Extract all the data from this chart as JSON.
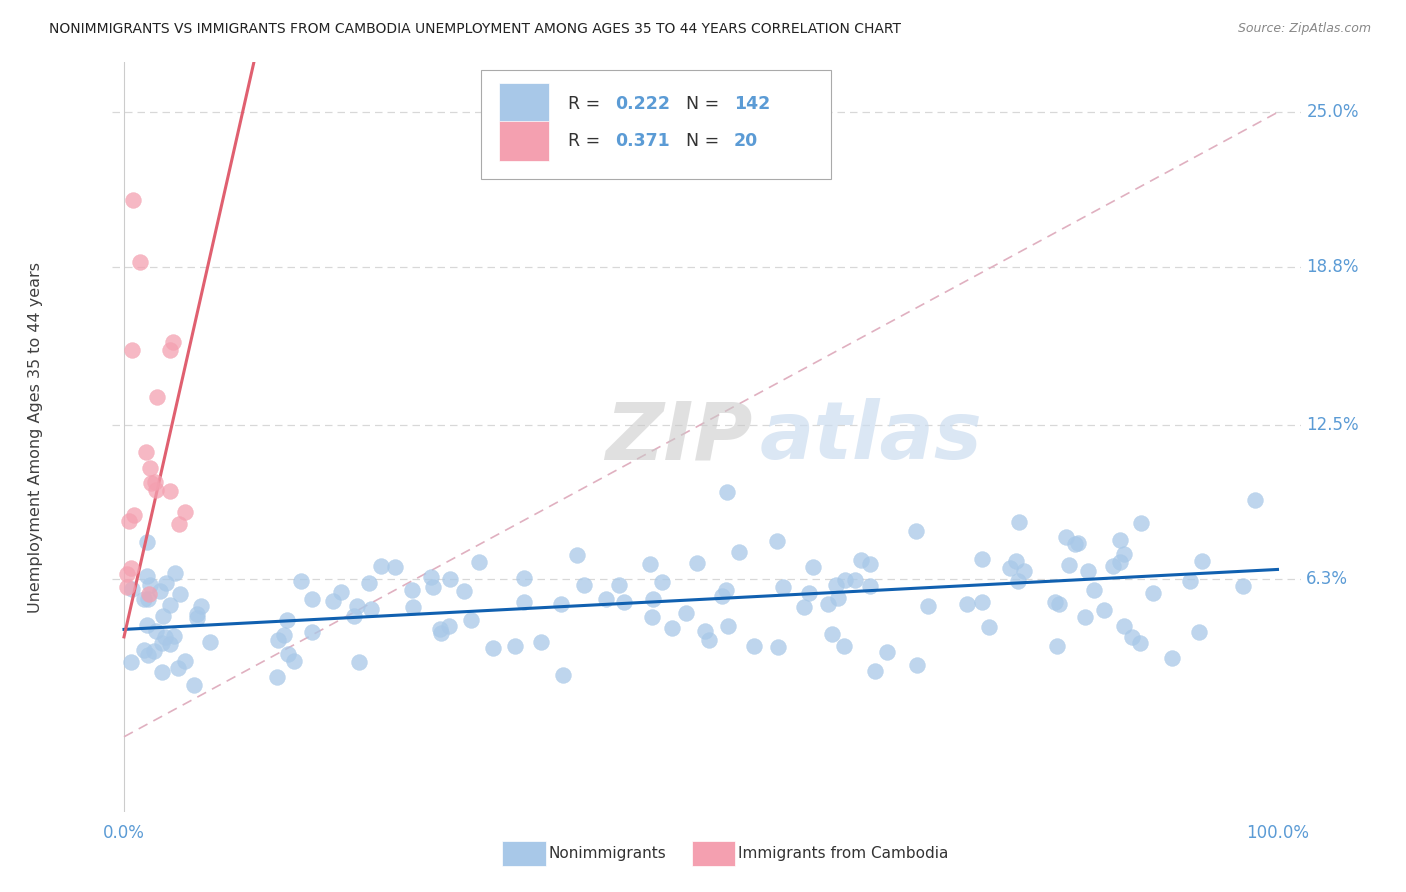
{
  "title": "NONIMMIGRANTS VS IMMIGRANTS FROM CAMBODIA UNEMPLOYMENT AMONG AGES 35 TO 44 YEARS CORRELATION CHART",
  "source": "Source: ZipAtlas.com",
  "ylabel": "Unemployment Among Ages 35 to 44 years",
  "ytick_labels": [
    "25.0%",
    "18.8%",
    "12.5%",
    "6.3%"
  ],
  "ytick_values": [
    0.25,
    0.188,
    0.125,
    0.063
  ],
  "ymin": -0.03,
  "ymax": 0.27,
  "xmin": -0.01,
  "xmax": 1.02,
  "blue_scatter_color": "#a8c8e8",
  "pink_scatter_color": "#f4a0b0",
  "blue_line_color": "#1060b0",
  "pink_line_color": "#e06070",
  "dashed_line_color": "#e0b0c0",
  "grid_color": "#d8d8d8",
  "axis_label_color": "#5b9bd5",
  "text_color": "#404040",
  "watermark_color": "#ccddf0",
  "legend_R_color": "#5b9bd5",
  "legend_N_color": "#5b9bd5",
  "bottom_legend_labels": [
    "Nonimmigrants",
    "Immigrants from Cambodia"
  ],
  "blue_legend_color": "#a8c8e8",
  "pink_legend_color": "#f4a0b0"
}
